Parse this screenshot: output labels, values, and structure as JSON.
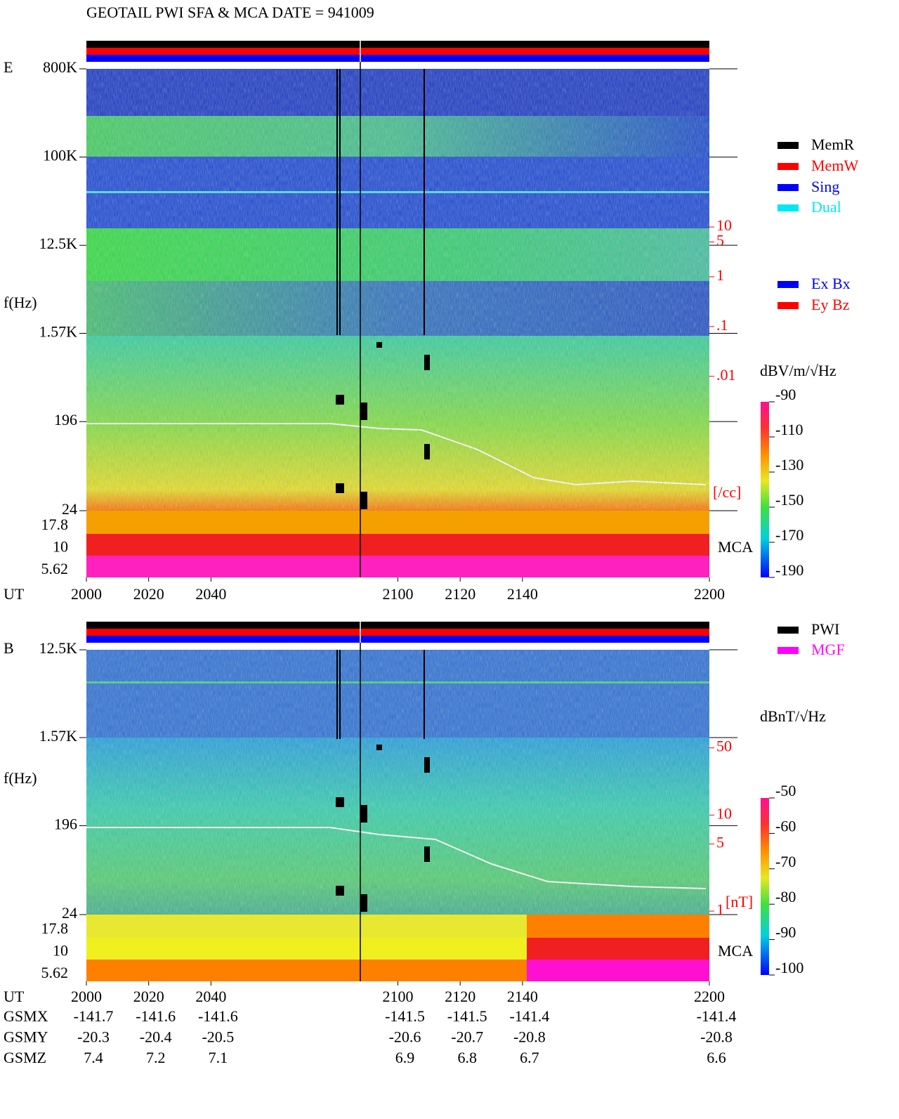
{
  "chart_data": {
    "type": "spectrogram",
    "title": "GEOTAIL  PWI SFA & MCA   DATE = 941009",
    "x_label": "UT",
    "xlim": [
      2000,
      2200
    ],
    "xticks": [
      2000,
      2020,
      2040,
      2100,
      2120,
      2140,
      2200
    ],
    "panels": [
      {
        "name": "E",
        "y_label": "f(Hz)",
        "yscale": "log",
        "ylim": [
          24,
          800000
        ],
        "yticks": [
          {
            "value": 800000,
            "label": "800K"
          },
          {
            "value": 100000,
            "label": "100K"
          },
          {
            "value": 12500,
            "label": "12.5K"
          },
          {
            "value": 1570,
            "label": "1.57K"
          },
          196,
          24
        ],
        "mca_label": "MCA",
        "mca_channels": [
          17.8,
          10,
          5.62
        ],
        "density_unit": "[/cc]",
        "density_lim": [
          15000,
          2e-05
        ],
        "density_ticks": [
          10,
          5,
          1,
          {
            "value": 0.1,
            "label": ".1"
          },
          {
            "value": 0.01,
            "label": ".01"
          }
        ],
        "colorbar_label": "dBV/m/√Hz",
        "zlim": [
          -190,
          -90
        ],
        "zticks": [
          -190,
          -170,
          -150,
          -130,
          -110,
          -90
        ],
        "legends": [
          [
            {
              "name": "MemR",
              "color": "#000000"
            },
            {
              "name": "MemW",
              "color": "#ff0000"
            },
            {
              "name": "Sing",
              "color": "#0000ff"
            },
            {
              "name": "Dual",
              "color": "#00e8f0"
            }
          ],
          [
            {
              "name": "Ex Bx",
              "color": "#0000ff"
            },
            {
              "name": "Ey Bz",
              "color": "#ff0000"
            }
          ]
        ]
      },
      {
        "name": "B",
        "y_label": "f(Hz)",
        "yscale": "log",
        "ylim": [
          24,
          12500
        ],
        "yticks": [
          {
            "value": 12500,
            "label": "12.5K"
          },
          {
            "value": 1570,
            "label": "1.57K"
          },
          196,
          24
        ],
        "mca_label": "MCA",
        "mca_channels": [
          17.8,
          10,
          5.62
        ],
        "density_unit": "[nT]",
        "density_lim": [
          525,
          0.92
        ],
        "density_ticks": [
          50,
          10,
          5,
          1
        ],
        "colorbar_label": "dBnT/√Hz",
        "zlim": [
          -100,
          -50
        ],
        "zticks": [
          -100,
          -90,
          -80,
          -70,
          -60,
          -50
        ],
        "legends": [
          [
            {
              "name": "PWI",
              "color": "#000000"
            },
            {
              "name": "MGF",
              "color": "#ff00ff"
            }
          ]
        ]
      }
    ],
    "orbit": [
      {
        "name": "GSMX",
        "values": [
          -141.7,
          -141.6,
          -141.6,
          -141.5,
          -141.5,
          -141.4,
          -141.4
        ]
      },
      {
        "name": "GSMY",
        "values": [
          -20.3,
          -20.4,
          -20.5,
          -20.6,
          -20.7,
          -20.8,
          -20.8
        ]
      },
      {
        "name": "GSMZ",
        "values": [
          7.4,
          7.2,
          7.1,
          6.9,
          6.8,
          6.7,
          6.6
        ]
      }
    ]
  }
}
